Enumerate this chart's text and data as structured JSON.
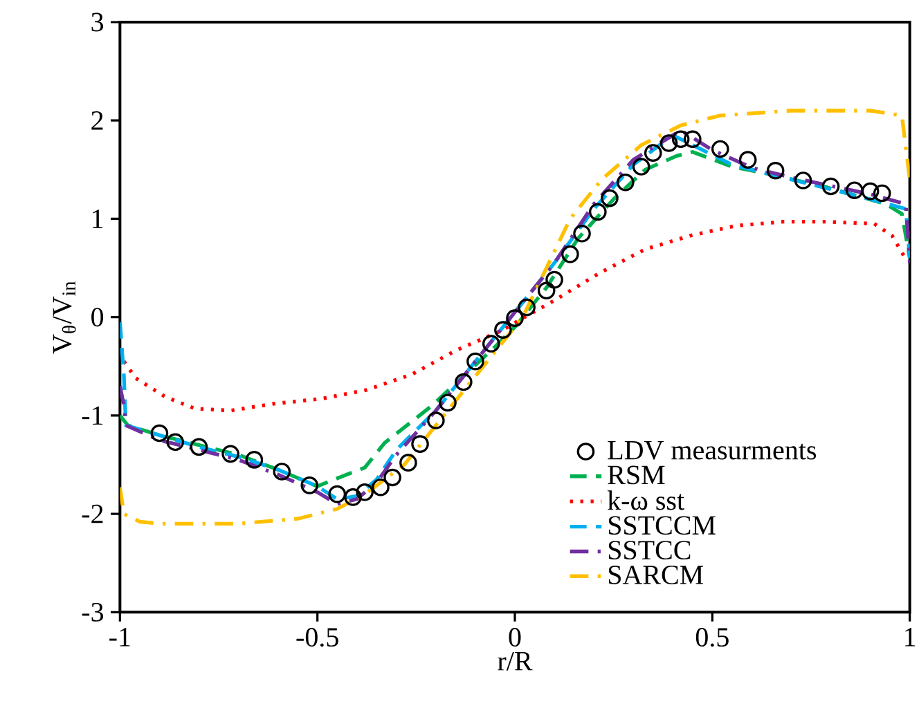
{
  "chart_data": {
    "type": "line",
    "xlabel": "r/R",
    "ylabel": "V$_{θ}$/V$_{in}$",
    "xlim": [
      -1,
      1
    ],
    "ylim": [
      -3,
      3
    ],
    "xticks": [
      -1,
      -0.5,
      0,
      0.5,
      1
    ],
    "yticks": [
      -3,
      -2,
      -1,
      0,
      1,
      2,
      3
    ],
    "grid": false,
    "legend": "bottom right",
    "series": [
      {
        "name": "LDV measurments",
        "type": "scatter",
        "marker": "circle",
        "color": "#000000",
        "x": [
          -0.9,
          -0.86,
          -0.8,
          -0.72,
          -0.66,
          -0.59,
          -0.52,
          -0.45,
          -0.41,
          -0.38,
          -0.34,
          -0.31,
          -0.27,
          -0.24,
          -0.2,
          -0.17,
          -0.13,
          -0.1,
          -0.06,
          -0.03,
          0.0,
          0.03,
          0.08,
          0.1,
          0.14,
          0.17,
          0.21,
          0.24,
          0.28,
          0.32,
          0.35,
          0.39,
          0.42,
          0.45,
          0.52,
          0.59,
          0.66,
          0.73,
          0.8,
          0.86,
          0.9,
          0.93
        ],
        "values": [
          -1.18,
          -1.27,
          -1.32,
          -1.39,
          -1.45,
          -1.57,
          -1.71,
          -1.8,
          -1.83,
          -1.78,
          -1.73,
          -1.63,
          -1.48,
          -1.29,
          -1.05,
          -0.87,
          -0.66,
          -0.45,
          -0.27,
          -0.13,
          -0.01,
          0.1,
          0.27,
          0.38,
          0.64,
          0.85,
          1.07,
          1.21,
          1.37,
          1.53,
          1.67,
          1.77,
          1.81,
          1.81,
          1.71,
          1.6,
          1.49,
          1.39,
          1.33,
          1.29,
          1.28,
          1.26
        ]
      },
      {
        "name": "RSM",
        "marker": "none",
        "line_style": "dashed",
        "color": "#00b050",
        "x": [
          -1.0,
          -0.98,
          -0.9,
          -0.8,
          -0.7,
          -0.6,
          -0.5,
          -0.47,
          -0.38,
          -0.33,
          -0.27,
          -0.21,
          -0.13,
          -0.05,
          0.0,
          0.08,
          0.16,
          0.25,
          0.33,
          0.41,
          0.45,
          0.55,
          0.65,
          0.79,
          0.94,
          0.98,
          1.0
        ],
        "values": [
          -1.0,
          -1.1,
          -1.2,
          -1.3,
          -1.4,
          -1.55,
          -1.72,
          -1.67,
          -1.53,
          -1.28,
          -1.09,
          -0.9,
          -0.6,
          -0.3,
          -0.1,
          0.3,
          0.8,
          1.2,
          1.5,
          1.64,
          1.68,
          1.53,
          1.45,
          1.32,
          1.15,
          1.05,
          0.6
        ]
      },
      {
        "name": "k-ω sst",
        "marker": "none",
        "line_style": "dotted",
        "color": "#ff0000",
        "x": [
          -0.99,
          -0.96,
          -0.885,
          -0.81,
          -0.72,
          -0.61,
          -0.49,
          -0.375,
          -0.26,
          -0.15,
          -0.03,
          0.02,
          0.1,
          0.215,
          0.33,
          0.445,
          0.56,
          0.68,
          0.79,
          0.91,
          0.955,
          0.99
        ],
        "values": [
          -0.45,
          -0.62,
          -0.81,
          -0.93,
          -0.95,
          -0.88,
          -0.83,
          -0.74,
          -0.58,
          -0.34,
          -0.13,
          -0.01,
          0.17,
          0.45,
          0.69,
          0.83,
          0.93,
          0.97,
          0.97,
          0.95,
          0.83,
          0.59
        ]
      },
      {
        "name": "SSTCCM",
        "marker": "none",
        "line_style": "dashed",
        "color": "#00b0f0",
        "x": [
          -1.0,
          -0.99,
          -0.985,
          -0.9,
          -0.8,
          -0.7,
          -0.6,
          -0.5,
          -0.45,
          -0.4,
          -0.35,
          -0.3,
          -0.2,
          -0.1,
          0.0,
          0.1,
          0.2,
          0.3,
          0.4,
          0.45,
          0.55,
          0.7,
          0.9,
          0.99,
          1.0
        ],
        "values": [
          -0.05,
          -0.6,
          -1.1,
          -1.2,
          -1.32,
          -1.42,
          -1.55,
          -1.72,
          -1.85,
          -1.82,
          -1.65,
          -1.35,
          -0.95,
          -0.45,
          0.05,
          0.55,
          1.1,
          1.55,
          1.85,
          1.75,
          1.55,
          1.4,
          1.2,
          1.1,
          0.6
        ]
      },
      {
        "name": "SSTCC",
        "marker": "none",
        "line_style": "dashdot",
        "color": "#7030a0",
        "x": [
          -1.0,
          -0.99,
          -0.985,
          -0.9,
          -0.8,
          -0.7,
          -0.6,
          -0.5,
          -0.45,
          -0.4,
          -0.35,
          -0.3,
          -0.2,
          -0.1,
          0.0,
          0.1,
          0.2,
          0.3,
          0.42,
          0.5,
          0.6,
          0.7,
          0.9,
          0.99,
          1.0
        ],
        "values": [
          -0.7,
          -0.9,
          -1.1,
          -1.25,
          -1.35,
          -1.45,
          -1.6,
          -1.78,
          -1.9,
          -1.85,
          -1.68,
          -1.4,
          -0.95,
          -0.45,
          0.05,
          0.55,
          1.15,
          1.6,
          1.9,
          1.7,
          1.52,
          1.42,
          1.25,
          1.15,
          0.55
        ]
      },
      {
        "name": "SARCM",
        "marker": "none",
        "line_style": "dashdot",
        "color": "#ffc000",
        "x": [
          -1.0,
          -0.99,
          -0.95,
          -0.9,
          -0.7,
          -0.55,
          -0.45,
          -0.38,
          -0.28,
          -0.18,
          -0.08,
          0.02,
          0.08,
          0.14,
          0.22,
          0.32,
          0.42,
          0.52,
          0.7,
          0.9,
          0.98,
          1.0
        ],
        "values": [
          -1.73,
          -2.0,
          -2.08,
          -2.1,
          -2.1,
          -2.05,
          -1.95,
          -1.8,
          -1.5,
          -1.0,
          -0.5,
          0.0,
          0.5,
          1.0,
          1.4,
          1.75,
          1.95,
          2.05,
          2.1,
          2.1,
          2.05,
          1.4
        ]
      }
    ]
  }
}
